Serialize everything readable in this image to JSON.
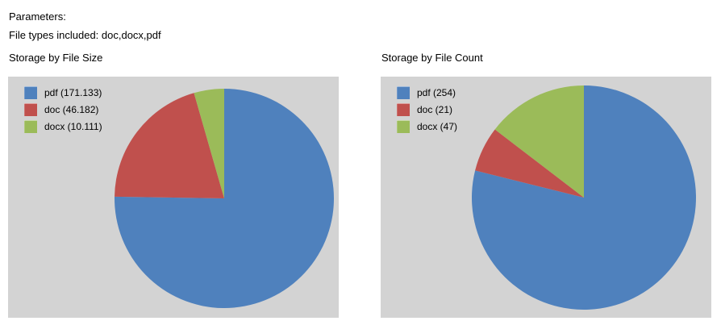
{
  "header": {
    "parameters_label": "Parameters:",
    "file_types_line": "File types included: doc,docx,pdf"
  },
  "palette": {
    "chart_background": "#D3D3D3",
    "pdf_color": "#4F81BD",
    "doc_color": "#C0504D",
    "docx_color": "#9BBB59"
  },
  "chart_data": [
    {
      "type": "pie",
      "title": "Storage by File Size",
      "labels": [
        "pdf",
        "doc",
        "docx"
      ],
      "values": [
        171.133,
        46.182,
        10.111
      ],
      "legend_labels": [
        "pdf (171.133)",
        "doc (46.182)",
        "docx (10.111)"
      ],
      "colors": [
        "#4F81BD",
        "#C0504D",
        "#9BBB59"
      ],
      "legend_position": "top-left",
      "start_angle": "top",
      "direction": "clockwise",
      "background": "#D3D3D3"
    },
    {
      "type": "pie",
      "title": "Storage by File Count",
      "labels": [
        "pdf",
        "doc",
        "docx"
      ],
      "values": [
        254,
        21,
        47
      ],
      "legend_labels": [
        "pdf (254)",
        "doc (21)",
        "docx (47)"
      ],
      "colors": [
        "#4F81BD",
        "#C0504D",
        "#9BBB59"
      ],
      "legend_position": "top-left",
      "start_angle": "top",
      "direction": "clockwise",
      "background": "#D3D3D3"
    }
  ]
}
